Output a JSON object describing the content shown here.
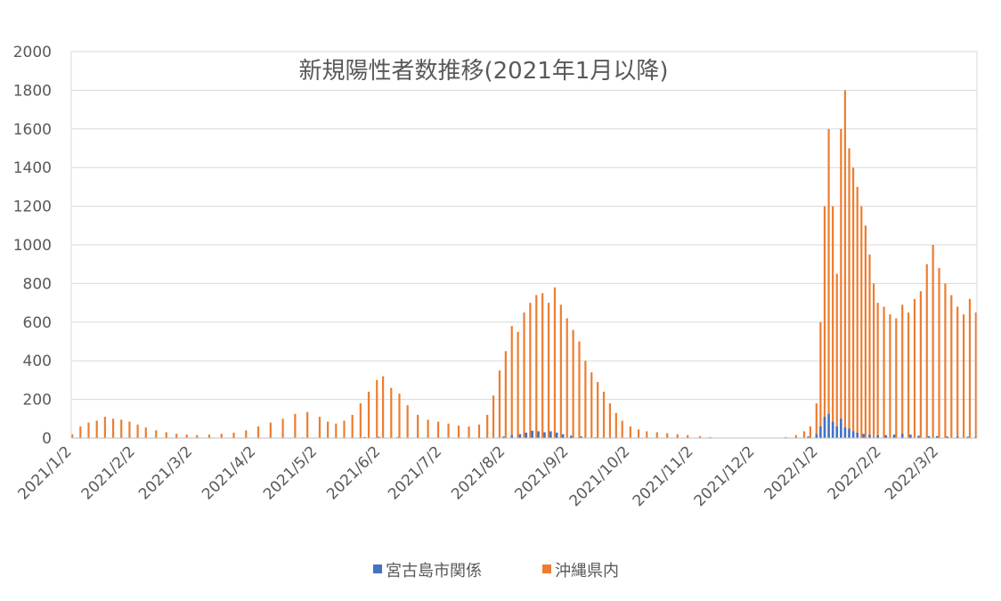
{
  "chart_data": {
    "type": "bar",
    "title": "新規陽性者数推移(2021年1月以降)",
    "xlabel": "",
    "ylabel": "",
    "ylim": [
      0,
      2000
    ],
    "yticks": [
      "0",
      "200",
      "400",
      "600",
      "800",
      "1000",
      "1200",
      "1400",
      "1600",
      "1800",
      "2000"
    ],
    "x_start": "2021-01-02",
    "x_end": "2022-03-20",
    "xtick_labels": [
      "2021/1/2",
      "2021/2/2",
      "2021/3/2",
      "2021/4/2",
      "2021/5/2",
      "2021/6/2",
      "2021/7/2",
      "2021/8/2",
      "2021/9/2",
      "2021/10/2",
      "2021/11/2",
      "2021/12/2",
      "2022/1/2",
      "2022/2/2",
      "2022/3/2"
    ],
    "grid": true,
    "legend_position": "bottom",
    "series": [
      {
        "name": "宮古島市関係",
        "color": "#4472C4",
        "points": [
          [
            "2021-01-02",
            1
          ],
          [
            "2021-01-15",
            2
          ],
          [
            "2021-02-01",
            1
          ],
          [
            "2021-03-10",
            1
          ],
          [
            "2021-04-05",
            2
          ],
          [
            "2021-04-25",
            3
          ],
          [
            "2021-05-10",
            2
          ],
          [
            "2021-05-25",
            5
          ],
          [
            "2021-06-01",
            6
          ],
          [
            "2021-06-10",
            4
          ],
          [
            "2021-07-01",
            2
          ],
          [
            "2021-07-20",
            3
          ],
          [
            "2021-08-01",
            8
          ],
          [
            "2021-08-05",
            15
          ],
          [
            "2021-08-09",
            20
          ],
          [
            "2021-08-12",
            28
          ],
          [
            "2021-08-15",
            38
          ],
          [
            "2021-08-18",
            35
          ],
          [
            "2021-08-21",
            30
          ],
          [
            "2021-08-24",
            35
          ],
          [
            "2021-08-27",
            28
          ],
          [
            "2021-08-30",
            20
          ],
          [
            "2021-09-03",
            12
          ],
          [
            "2021-09-08",
            8
          ],
          [
            "2021-09-15",
            4
          ],
          [
            "2021-09-25",
            2
          ],
          [
            "2021-12-28",
            8
          ],
          [
            "2022-01-01",
            20
          ],
          [
            "2022-01-03",
            60
          ],
          [
            "2022-01-05",
            110
          ],
          [
            "2022-01-07",
            125
          ],
          [
            "2022-01-09",
            85
          ],
          [
            "2022-01-11",
            60
          ],
          [
            "2022-01-13",
            100
          ],
          [
            "2022-01-15",
            55
          ],
          [
            "2022-01-17",
            48
          ],
          [
            "2022-01-19",
            35
          ],
          [
            "2022-01-21",
            28
          ],
          [
            "2022-01-24",
            22
          ],
          [
            "2022-01-27",
            18
          ],
          [
            "2022-01-31",
            15
          ],
          [
            "2022-02-04",
            15
          ],
          [
            "2022-02-08",
            18
          ],
          [
            "2022-02-12",
            22
          ],
          [
            "2022-02-16",
            18
          ],
          [
            "2022-02-20",
            12
          ],
          [
            "2022-02-25",
            10
          ],
          [
            "2022-03-01",
            10
          ],
          [
            "2022-03-06",
            8
          ],
          [
            "2022-03-11",
            8
          ],
          [
            "2022-03-16",
            7
          ],
          [
            "2022-03-20",
            6
          ]
        ]
      },
      {
        "name": "沖縄県内",
        "color": "#ED7D31",
        "points": [
          [
            "2021-01-02",
            20
          ],
          [
            "2021-01-06",
            60
          ],
          [
            "2021-01-10",
            80
          ],
          [
            "2021-01-14",
            90
          ],
          [
            "2021-01-18",
            110
          ],
          [
            "2021-01-22",
            100
          ],
          [
            "2021-01-26",
            95
          ],
          [
            "2021-01-30",
            85
          ],
          [
            "2021-02-03",
            70
          ],
          [
            "2021-02-07",
            55
          ],
          [
            "2021-02-12",
            40
          ],
          [
            "2021-02-17",
            30
          ],
          [
            "2021-02-22",
            22
          ],
          [
            "2021-02-27",
            18
          ],
          [
            "2021-03-04",
            15
          ],
          [
            "2021-03-10",
            18
          ],
          [
            "2021-03-16",
            22
          ],
          [
            "2021-03-22",
            28
          ],
          [
            "2021-03-28",
            40
          ],
          [
            "2021-04-03",
            60
          ],
          [
            "2021-04-09",
            80
          ],
          [
            "2021-04-15",
            100
          ],
          [
            "2021-04-21",
            125
          ],
          [
            "2021-04-27",
            135
          ],
          [
            "2021-05-03",
            110
          ],
          [
            "2021-05-07",
            85
          ],
          [
            "2021-05-11",
            75
          ],
          [
            "2021-05-15",
            90
          ],
          [
            "2021-05-19",
            120
          ],
          [
            "2021-05-23",
            180
          ],
          [
            "2021-05-27",
            240
          ],
          [
            "2021-05-31",
            300
          ],
          [
            "2021-06-03",
            320
          ],
          [
            "2021-06-07",
            260
          ],
          [
            "2021-06-11",
            230
          ],
          [
            "2021-06-15",
            170
          ],
          [
            "2021-06-20",
            120
          ],
          [
            "2021-06-25",
            95
          ],
          [
            "2021-06-30",
            85
          ],
          [
            "2021-07-05",
            75
          ],
          [
            "2021-07-10",
            65
          ],
          [
            "2021-07-15",
            60
          ],
          [
            "2021-07-20",
            70
          ],
          [
            "2021-07-24",
            120
          ],
          [
            "2021-07-27",
            220
          ],
          [
            "2021-07-30",
            350
          ],
          [
            "2021-08-02",
            450
          ],
          [
            "2021-08-05",
            580
          ],
          [
            "2021-08-08",
            550
          ],
          [
            "2021-08-11",
            650
          ],
          [
            "2021-08-14",
            700
          ],
          [
            "2021-08-17",
            740
          ],
          [
            "2021-08-20",
            750
          ],
          [
            "2021-08-23",
            700
          ],
          [
            "2021-08-26",
            780
          ],
          [
            "2021-08-29",
            690
          ],
          [
            "2021-09-01",
            620
          ],
          [
            "2021-09-04",
            560
          ],
          [
            "2021-09-07",
            500
          ],
          [
            "2021-09-10",
            400
          ],
          [
            "2021-09-13",
            340
          ],
          [
            "2021-09-16",
            290
          ],
          [
            "2021-09-19",
            240
          ],
          [
            "2021-09-22",
            180
          ],
          [
            "2021-09-25",
            130
          ],
          [
            "2021-09-28",
            90
          ],
          [
            "2021-10-02",
            60
          ],
          [
            "2021-10-06",
            45
          ],
          [
            "2021-10-10",
            35
          ],
          [
            "2021-10-15",
            30
          ],
          [
            "2021-10-20",
            25
          ],
          [
            "2021-10-25",
            20
          ],
          [
            "2021-10-30",
            15
          ],
          [
            "2021-11-05",
            10
          ],
          [
            "2021-11-10",
            5
          ],
          [
            "2021-11-15",
            2
          ],
          [
            "2021-11-22",
            1
          ],
          [
            "2021-12-01",
            1
          ],
          [
            "2021-12-10",
            2
          ],
          [
            "2021-12-17",
            5
          ],
          [
            "2021-12-22",
            15
          ],
          [
            "2021-12-26",
            35
          ],
          [
            "2021-12-29",
            60
          ],
          [
            "2022-01-01",
            180
          ],
          [
            "2022-01-03",
            600
          ],
          [
            "2022-01-05",
            1200
          ],
          [
            "2022-01-07",
            1600
          ],
          [
            "2022-01-09",
            1200
          ],
          [
            "2022-01-11",
            850
          ],
          [
            "2022-01-13",
            1600
          ],
          [
            "2022-01-15",
            1800
          ],
          [
            "2022-01-17",
            1500
          ],
          [
            "2022-01-19",
            1400
          ],
          [
            "2022-01-21",
            1300
          ],
          [
            "2022-01-23",
            1200
          ],
          [
            "2022-01-25",
            1100
          ],
          [
            "2022-01-27",
            950
          ],
          [
            "2022-01-29",
            800
          ],
          [
            "2022-01-31",
            700
          ],
          [
            "2022-02-03",
            680
          ],
          [
            "2022-02-06",
            640
          ],
          [
            "2022-02-09",
            620
          ],
          [
            "2022-02-12",
            690
          ],
          [
            "2022-02-15",
            650
          ],
          [
            "2022-02-18",
            720
          ],
          [
            "2022-02-21",
            760
          ],
          [
            "2022-02-24",
            900
          ],
          [
            "2022-02-27",
            1000
          ],
          [
            "2022-03-02",
            880
          ],
          [
            "2022-03-05",
            800
          ],
          [
            "2022-03-08",
            740
          ],
          [
            "2022-03-11",
            680
          ],
          [
            "2022-03-14",
            640
          ],
          [
            "2022-03-17",
            720
          ],
          [
            "2022-03-20",
            650
          ]
        ]
      }
    ]
  }
}
